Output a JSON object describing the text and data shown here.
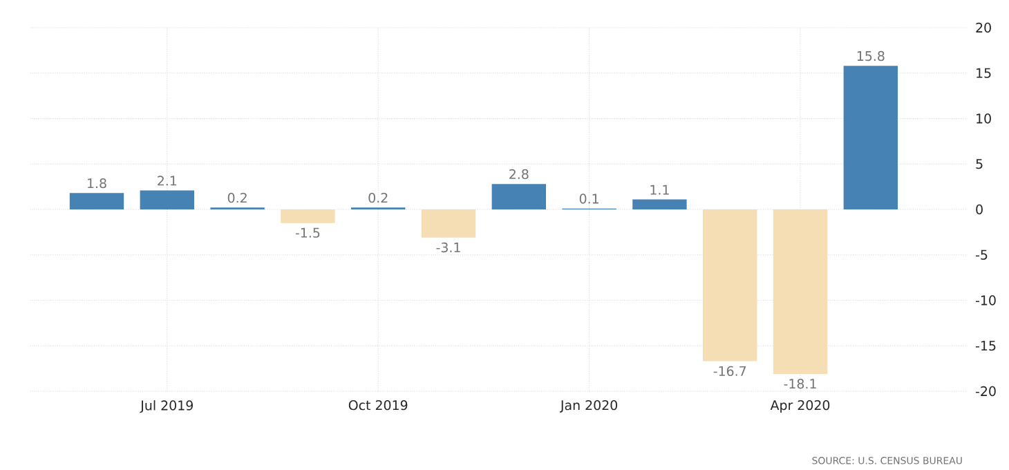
{
  "chart_data": {
    "type": "bar",
    "categories": [
      null,
      "Jul 2019",
      null,
      null,
      "Oct 2019",
      null,
      null,
      "Jan 2020",
      null,
      null,
      "Apr 2020",
      null
    ],
    "values": [
      1.8,
      2.1,
      0.2,
      -1.5,
      0.2,
      -3.1,
      2.8,
      0.1,
      1.1,
      -16.7,
      -18.1,
      15.8
    ],
    "colors": [
      "#4682b4",
      "#4682b4",
      "#4682b4",
      "#f5deb3",
      "#4682b4",
      "#f5deb3",
      "#4682b4",
      "#4682b4",
      "#4682b4",
      "#f5deb3",
      "#f5deb3",
      "#4682b4"
    ],
    "ylim": [
      -20,
      20
    ],
    "yticks": [
      -20,
      -15,
      -10,
      -5,
      0,
      5,
      10,
      15,
      20
    ],
    "grid": true,
    "data_labels": true,
    "annotations": [
      "SOURCE: U.S. CENSUS BUREAU"
    ]
  }
}
